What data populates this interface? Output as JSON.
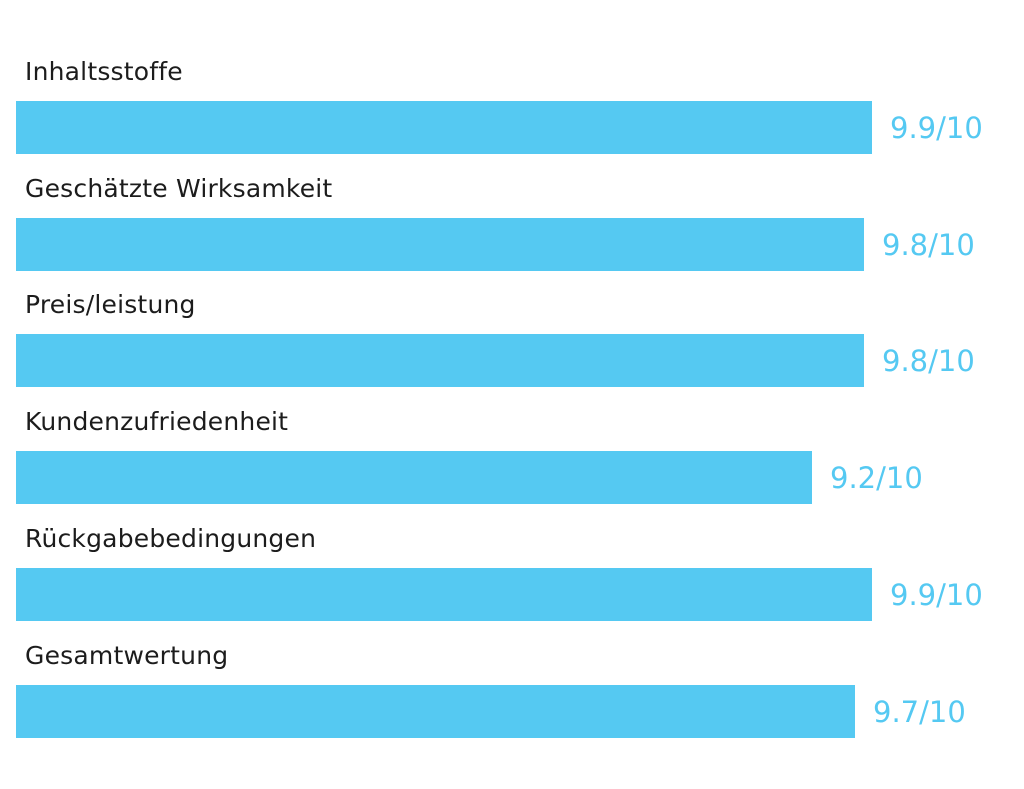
{
  "colors": {
    "bar": "#55c9f2",
    "value_text": "#55c9f2",
    "label_text": "#1c1c1c",
    "background": "#ffffff"
  },
  "chart_data": {
    "type": "bar",
    "orientation": "horizontal",
    "categories": [
      "Inhaltsstoffe",
      "Geschätzte Wirksamkeit",
      "Preis/leistung",
      "Kundenzufriedenheit",
      "Rückgabebedingungen",
      "Gesamtwertung"
    ],
    "values": [
      9.9,
      9.8,
      9.8,
      9.2,
      9.9,
      9.7
    ],
    "value_labels": [
      "9.9/10",
      "9.8/10",
      "9.8/10",
      "9.2/10",
      "9.9/10",
      "9.7/10"
    ],
    "xlim": [
      0,
      10
    ],
    "grid": false,
    "legend": "none"
  }
}
